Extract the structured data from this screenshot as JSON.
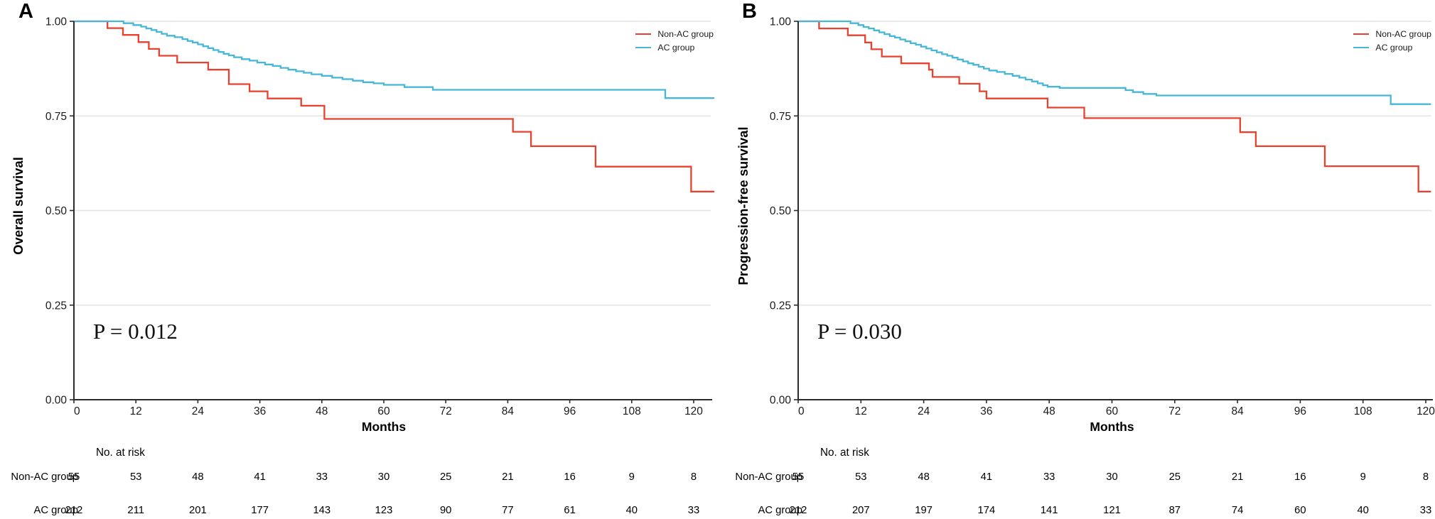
{
  "figure": {
    "xlabel": "Months",
    "risk_header": "No. at risk",
    "x_ticks": [
      0,
      12,
      24,
      36,
      48,
      60,
      72,
      84,
      96,
      108,
      120
    ],
    "y_tick_labels": [
      "1.00",
      "0.75",
      "0.50",
      "0.25",
      "0.00"
    ],
    "y_tick_values": [
      1.0,
      0.75,
      0.5,
      0.25,
      0.0
    ],
    "colors": {
      "non_ac": "#e8412e",
      "ac": "#47b7d7",
      "grid": "#e7e7e7",
      "axis": "#2b2b2b",
      "text": "#1a1a1a"
    }
  },
  "panels": [
    {
      "letter": "A",
      "ylabel": "Overall survival",
      "p_value": "P = 0.012",
      "legend": [
        {
          "label": "Non-AC group",
          "color_key": "non_ac"
        },
        {
          "label": "AC group",
          "color_key": "ac"
        }
      ],
      "risk_rows": [
        {
          "label": "Non-AC group",
          "values": [
            55,
            53,
            48,
            41,
            33,
            30,
            25,
            21,
            16,
            9,
            8
          ]
        },
        {
          "label": "AC group",
          "values": [
            212,
            211,
            201,
            177,
            143,
            123,
            90,
            77,
            61,
            40,
            33
          ]
        }
      ],
      "chart_index": 0
    },
    {
      "letter": "B",
      "ylabel": "Progression-free survival",
      "p_value": "P = 0.030",
      "legend": [
        {
          "label": "Non-AC group",
          "color_key": "non_ac"
        },
        {
          "label": "AC group",
          "color_key": "ac"
        }
      ],
      "risk_rows": [
        {
          "label": "Non-AC group",
          "values": [
            55,
            53,
            48,
            41,
            33,
            30,
            25,
            21,
            16,
            9,
            8
          ]
        },
        {
          "label": "AC group",
          "values": [
            212,
            207,
            197,
            174,
            141,
            121,
            87,
            74,
            60,
            40,
            33
          ]
        }
      ],
      "chart_index": 1
    }
  ],
  "chart_data": [
    {
      "type": "line",
      "subtype": "kaplan-meier-step",
      "title": "Overall survival",
      "xlabel": "Months",
      "ylabel": "Overall survival",
      "xlim": [
        0,
        124
      ],
      "ylim": [
        0.0,
        1.0
      ],
      "grid": "horizontal-major",
      "legend_position": "top-right",
      "annotation": "P = 0.012",
      "series": [
        {
          "name": "Non-AC group",
          "color_key": "non_ac",
          "start": [
            0,
            1.0
          ],
          "end_month": 124,
          "steps": [
            [
              6.5,
              0.982
            ],
            [
              9.5,
              0.964
            ],
            [
              12.5,
              0.945
            ],
            [
              14.5,
              0.927
            ],
            [
              16.5,
              0.909
            ],
            [
              20,
              0.891
            ],
            [
              26,
              0.872
            ],
            [
              30,
              0.834
            ],
            [
              34,
              0.815
            ],
            [
              37.5,
              0.796
            ],
            [
              44,
              0.777
            ],
            [
              48.5,
              0.742
            ],
            [
              85,
              0.708
            ],
            [
              88.5,
              0.67
            ],
            [
              101,
              0.616
            ],
            [
              119.5,
              0.55
            ]
          ]
        },
        {
          "name": "AC group",
          "color_key": "ac",
          "start": [
            0,
            1.0
          ],
          "end_month": 124,
          "steps": [
            [
              9.6,
              0.995
            ],
            [
              11.5,
              0.99
            ],
            [
              13,
              0.986
            ],
            [
              14,
              0.981
            ],
            [
              15,
              0.977
            ],
            [
              16,
              0.972
            ],
            [
              17,
              0.967
            ],
            [
              18,
              0.962
            ],
            [
              19.5,
              0.958
            ],
            [
              21,
              0.953
            ],
            [
              22,
              0.948
            ],
            [
              23,
              0.944
            ],
            [
              24,
              0.939
            ],
            [
              25,
              0.934
            ],
            [
              26,
              0.929
            ],
            [
              27,
              0.924
            ],
            [
              28,
              0.919
            ],
            [
              29,
              0.914
            ],
            [
              30,
              0.91
            ],
            [
              31,
              0.905
            ],
            [
              32.5,
              0.9
            ],
            [
              34,
              0.896
            ],
            [
              35.5,
              0.891
            ],
            [
              37,
              0.886
            ],
            [
              38.5,
              0.882
            ],
            [
              40,
              0.877
            ],
            [
              41.5,
              0.872
            ],
            [
              43,
              0.868
            ],
            [
              44.5,
              0.864
            ],
            [
              46,
              0.86
            ],
            [
              48,
              0.856
            ],
            [
              50,
              0.851
            ],
            [
              52,
              0.847
            ],
            [
              54,
              0.843
            ],
            [
              56,
              0.839
            ],
            [
              58,
              0.836
            ],
            [
              60,
              0.832
            ],
            [
              64,
              0.826
            ],
            [
              69.5,
              0.819
            ],
            [
              114.5,
              0.797
            ]
          ]
        }
      ]
    },
    {
      "type": "line",
      "subtype": "kaplan-meier-step",
      "title": "Progression-free survival",
      "xlabel": "Months",
      "ylabel": "Progression-free survival",
      "xlim": [
        0,
        121
      ],
      "ylim": [
        0.0,
        1.0
      ],
      "grid": "horizontal-major",
      "legend_position": "top-right",
      "annotation": "P = 0.030",
      "series": [
        {
          "name": "Non-AC group",
          "color_key": "non_ac",
          "start": [
            0,
            1.0
          ],
          "end_month": 121,
          "steps": [
            [
              4,
              0.981
            ],
            [
              9.5,
              0.963
            ],
            [
              12.8,
              0.944
            ],
            [
              14,
              0.926
            ],
            [
              16,
              0.907
            ],
            [
              19.7,
              0.889
            ],
            [
              25,
              0.872
            ],
            [
              25.7,
              0.853
            ],
            [
              30.8,
              0.835
            ],
            [
              34.7,
              0.815
            ],
            [
              36,
              0.796
            ],
            [
              47.7,
              0.772
            ],
            [
              54.7,
              0.744
            ],
            [
              84.5,
              0.707
            ],
            [
              87.5,
              0.67
            ],
            [
              100.7,
              0.617
            ],
            [
              118.6,
              0.55
            ]
          ]
        },
        {
          "name": "AC group",
          "color_key": "ac",
          "start": [
            0,
            1.0
          ],
          "end_month": 121,
          "steps": [
            [
              10,
              0.995
            ],
            [
              11.5,
              0.99
            ],
            [
              12.5,
              0.985
            ],
            [
              13.5,
              0.981
            ],
            [
              14.5,
              0.976
            ],
            [
              15.5,
              0.971
            ],
            [
              16.5,
              0.966
            ],
            [
              17.5,
              0.961
            ],
            [
              18.5,
              0.957
            ],
            [
              19.5,
              0.952
            ],
            [
              20.5,
              0.947
            ],
            [
              21.5,
              0.942
            ],
            [
              22.5,
              0.938
            ],
            [
              23.5,
              0.933
            ],
            [
              24.5,
              0.928
            ],
            [
              25.5,
              0.923
            ],
            [
              26.5,
              0.918
            ],
            [
              27.5,
              0.913
            ],
            [
              28.5,
              0.909
            ],
            [
              29.5,
              0.904
            ],
            [
              30.5,
              0.899
            ],
            [
              31.5,
              0.894
            ],
            [
              32.5,
              0.889
            ],
            [
              33.5,
              0.885
            ],
            [
              34.5,
              0.88
            ],
            [
              35.5,
              0.875
            ],
            [
              36.5,
              0.87
            ],
            [
              38,
              0.866
            ],
            [
              39.5,
              0.861
            ],
            [
              41,
              0.856
            ],
            [
              42.3,
              0.851
            ],
            [
              43.5,
              0.846
            ],
            [
              44.7,
              0.841
            ],
            [
              45.8,
              0.836
            ],
            [
              46.8,
              0.831
            ],
            [
              47.7,
              0.827
            ],
            [
              50,
              0.824
            ],
            [
              62.6,
              0.818
            ],
            [
              64,
              0.813
            ],
            [
              66,
              0.808
            ],
            [
              68.5,
              0.804
            ],
            [
              113.3,
              0.781
            ]
          ]
        }
      ]
    }
  ]
}
